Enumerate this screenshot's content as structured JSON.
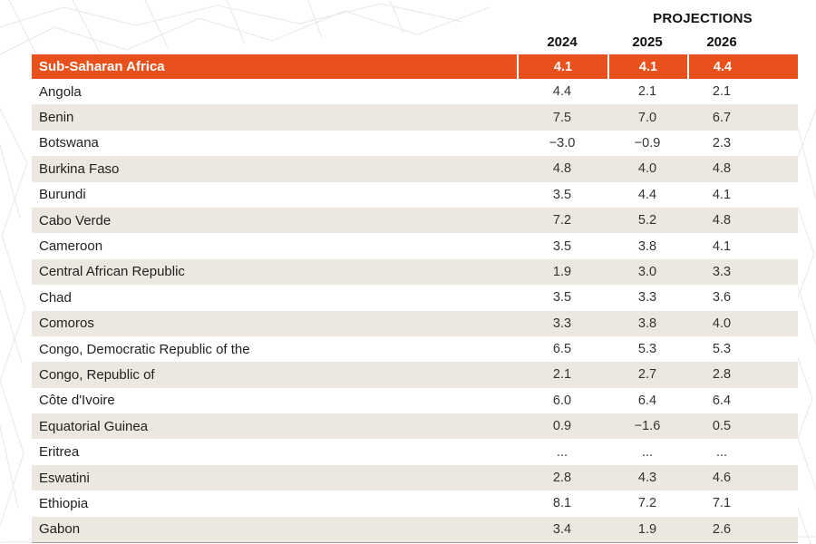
{
  "page": {
    "background_color": "#ffffff"
  },
  "table": {
    "projections_label": "PROJECTIONS",
    "columns": [
      "2024",
      "2025",
      "2026"
    ],
    "header_row": {
      "label": "Sub-Saharan Africa",
      "values": [
        "4.1",
        "4.1",
        "4.4"
      ]
    },
    "rows": [
      {
        "label": "Angola",
        "values": [
          "4.4",
          "2.1",
          "2.1"
        ]
      },
      {
        "label": "Benin",
        "values": [
          "7.5",
          "7.0",
          "6.7"
        ]
      },
      {
        "label": "Botswana",
        "values": [
          "−3.0",
          "−0.9",
          "2.3"
        ]
      },
      {
        "label": "Burkina Faso",
        "values": [
          "4.8",
          "4.0",
          "4.8"
        ]
      },
      {
        "label": "Burundi",
        "values": [
          "3.5",
          "4.4",
          "4.1"
        ]
      },
      {
        "label": "Cabo Verde",
        "values": [
          "7.2",
          "5.2",
          "4.8"
        ]
      },
      {
        "label": "Cameroon",
        "values": [
          "3.5",
          "3.8",
          "4.1"
        ]
      },
      {
        "label": "Central African Republic",
        "values": [
          "1.9",
          "3.0",
          "3.3"
        ]
      },
      {
        "label": "Chad",
        "values": [
          "3.5",
          "3.3",
          "3.6"
        ]
      },
      {
        "label": "Comoros",
        "values": [
          "3.3",
          "3.8",
          "4.0"
        ]
      },
      {
        "label": "Congo, Democratic Republic of the",
        "values": [
          "6.5",
          "5.3",
          "5.3"
        ]
      },
      {
        "label": "Congo, Republic of",
        "values": [
          "2.1",
          "2.7",
          "2.8"
        ]
      },
      {
        "label": "Côte d'Ivoire",
        "values": [
          "6.0",
          "6.4",
          "6.4"
        ]
      },
      {
        "label": "Equatorial Guinea",
        "values": [
          "0.9",
          "−1.6",
          "0.5"
        ]
      },
      {
        "label": "Eritrea",
        "values": [
          "...",
          "...",
          "..."
        ]
      },
      {
        "label": "Eswatini",
        "values": [
          "2.8",
          "4.3",
          "4.6"
        ]
      },
      {
        "label": "Ethiopia",
        "values": [
          "8.1",
          "7.2",
          "7.1"
        ]
      },
      {
        "label": "Gabon",
        "values": [
          "3.4",
          "1.9",
          "2.6"
        ]
      }
    ],
    "colors": {
      "accent_orange": "#E8511C",
      "stripe_beige": "#EDE8DF"
    }
  }
}
